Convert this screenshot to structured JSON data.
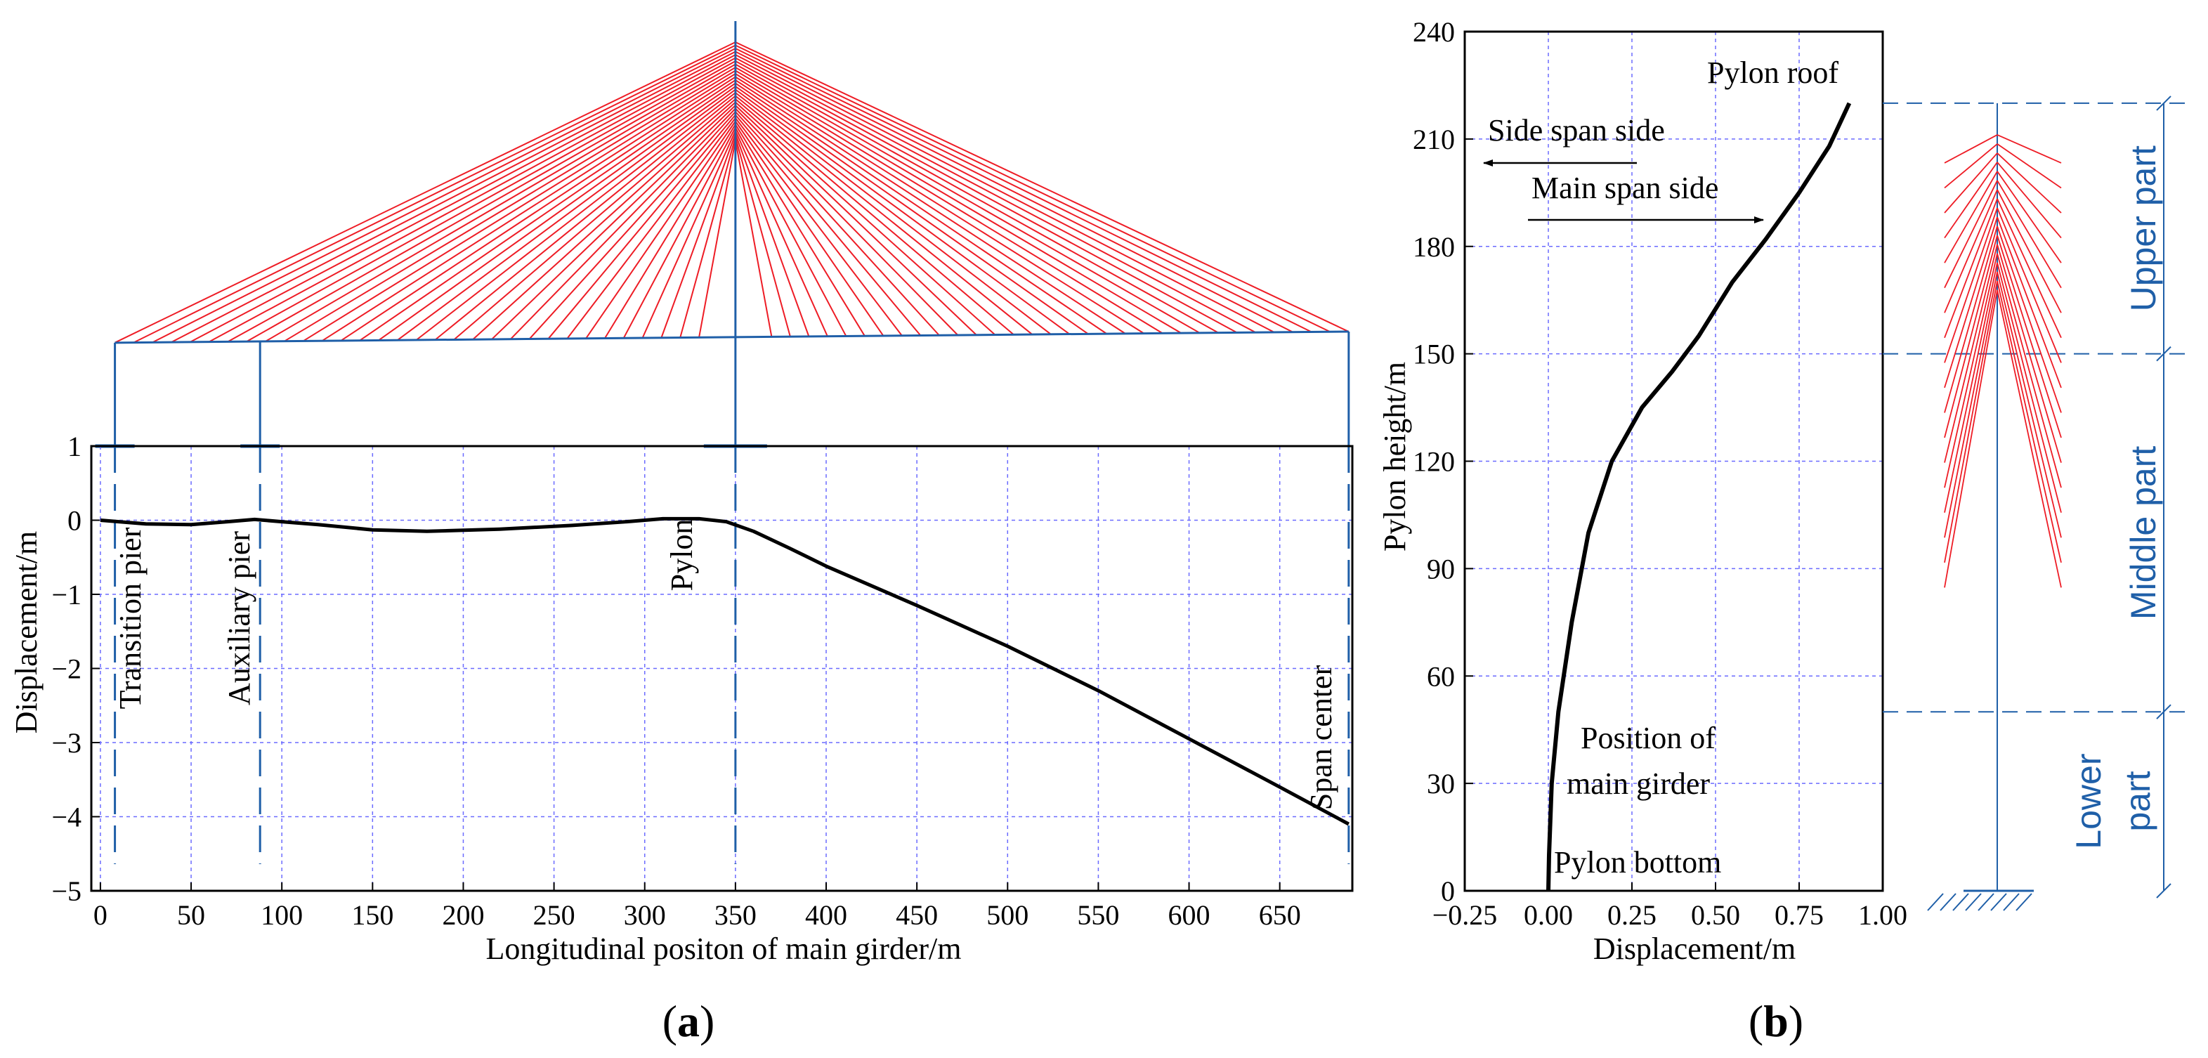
{
  "colors": {
    "cable": "#ee1c25",
    "structure": "#1f5fa8",
    "grid": "#6b6bff",
    "curve": "#000000"
  },
  "chart_data": [
    {
      "panel": "a",
      "panel_label": "a",
      "type": "line",
      "xlabel": "Longitudinal positon of main girder/m",
      "ylabel": "Displacement/m",
      "xlim": [
        -5,
        690
      ],
      "ylim": [
        -5,
        1
      ],
      "xticks": [
        0,
        50,
        100,
        150,
        200,
        250,
        300,
        350,
        400,
        450,
        500,
        550,
        600,
        650
      ],
      "xtick_labels": [
        "0",
        "50",
        "100",
        "150",
        "200",
        "250",
        "300",
        "350",
        "400",
        "450",
        "500",
        "550",
        "600",
        "650"
      ],
      "yticks": [
        1,
        0,
        -1,
        -2,
        -3,
        -4,
        -5
      ],
      "ytick_labels": [
        "1",
        "0",
        "−1",
        "−2",
        "−3",
        "−4",
        "−5"
      ],
      "grid": true,
      "series": [
        {
          "name": "Girder displacement",
          "x": [
            0,
            25,
            50,
            70,
            85,
            100,
            120,
            150,
            180,
            220,
            260,
            290,
            310,
            330,
            345,
            360,
            380,
            400,
            450,
            500,
            550,
            600,
            650,
            688
          ],
          "y": [
            0,
            -0.05,
            -0.06,
            -0.02,
            0.01,
            -0.02,
            -0.06,
            -0.13,
            -0.15,
            -0.12,
            -0.07,
            -0.02,
            0.02,
            0.02,
            -0.02,
            -0.15,
            -0.38,
            -0.62,
            -1.15,
            -1.7,
            -2.3,
            -2.95,
            -3.6,
            -4.1
          ]
        }
      ],
      "markers": [
        {
          "label": "Transition pier",
          "x": 8
        },
        {
          "label": "Auxiliary pier",
          "x": 88
        },
        {
          "label": "Pylon",
          "x": 350
        },
        {
          "label": "Span center",
          "x": 688
        }
      ],
      "bridge_schematic": {
        "cable_count_per_side": 32
      }
    },
    {
      "panel": "b",
      "panel_label": "b",
      "type": "line",
      "xlabel": "Displacement/m",
      "ylabel": "Pylon height/m",
      "xlim": [
        -0.25,
        1.0
      ],
      "ylim": [
        0,
        240
      ],
      "xticks": [
        -0.25,
        0.0,
        0.25,
        0.5,
        0.75,
        1.0
      ],
      "xtick_labels": [
        "−0.25",
        "0.00",
        "0.25",
        "0.50",
        "0.75",
        "1.00"
      ],
      "yticks": [
        0,
        30,
        60,
        90,
        120,
        150,
        180,
        210,
        240
      ],
      "ytick_labels": [
        "0",
        "30",
        "60",
        "90",
        "120",
        "150",
        "180",
        "210",
        "240"
      ],
      "grid": true,
      "series": [
        {
          "name": "Pylon displacement",
          "x": [
            0.0,
            0.002,
            0.01,
            0.03,
            0.07,
            0.12,
            0.19,
            0.28,
            0.37,
            0.45,
            0.55,
            0.65,
            0.75,
            0.84,
            0.9
          ],
          "y": [
            0,
            10,
            30,
            50,
            75,
            100,
            120,
            135,
            145,
            155,
            170,
            182,
            195,
            208,
            220
          ]
        }
      ],
      "annotations": {
        "pylon_roof": "Pylon roof",
        "side_span_side": "Side span side",
        "main_span_side": "Main span side",
        "position_of": "Position of",
        "main_girder": "main girder",
        "pylon_bottom": "Pylon bottom"
      },
      "pylon_parts": {
        "upper": "Upper part",
        "middle": "Middle part",
        "lower_1": "Lower",
        "lower_2": "part",
        "boundaries_m": [
          0,
          50,
          150,
          220
        ]
      }
    }
  ]
}
